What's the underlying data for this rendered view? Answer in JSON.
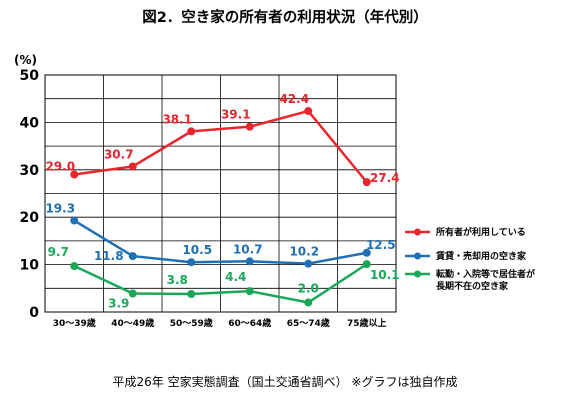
{
  "title": "図2．空き家の所有者の利用状況（年代別）",
  "source_note": "平成26年 空家実態調査（国土交通省調べ） ※グラフは独自作成",
  "chart_data": {
    "type": "line",
    "ylabel": "(%)",
    "ylim": [
      0,
      50
    ],
    "yticks": [
      0,
      10,
      20,
      30,
      40,
      50
    ],
    "categories": [
      "30～39歳",
      "40～49歳",
      "50～59歳",
      "60～64歳",
      "65～74歳",
      "75歳以上"
    ],
    "grid": true,
    "legend_position": "right",
    "series": [
      {
        "name": "所有者が利用している",
        "color": "#e8262b",
        "values": [
          29.0,
          30.7,
          38.1,
          39.1,
          42.4,
          27.4
        ],
        "labels": [
          "29.0",
          "30.7",
          "38.1",
          "39.1",
          "42.4",
          "27.4"
        ]
      },
      {
        "name": "賃貸・売却用の空き家",
        "color": "#1f6fb4",
        "values": [
          19.3,
          11.8,
          10.5,
          10.7,
          10.2,
          12.5
        ],
        "labels": [
          "19.3",
          "11.8",
          "10.5",
          "10.7",
          "10.2",
          "12.5"
        ]
      },
      {
        "name": "転勤・入院等で居住者が長期不在の空き家",
        "color": "#1aa858",
        "values": [
          9.7,
          3.9,
          3.8,
          4.4,
          2.0,
          10.1
        ],
        "labels": [
          "9.7",
          "3.9",
          "3.8",
          "4.4",
          "2.0",
          "10.1"
        ]
      }
    ]
  }
}
